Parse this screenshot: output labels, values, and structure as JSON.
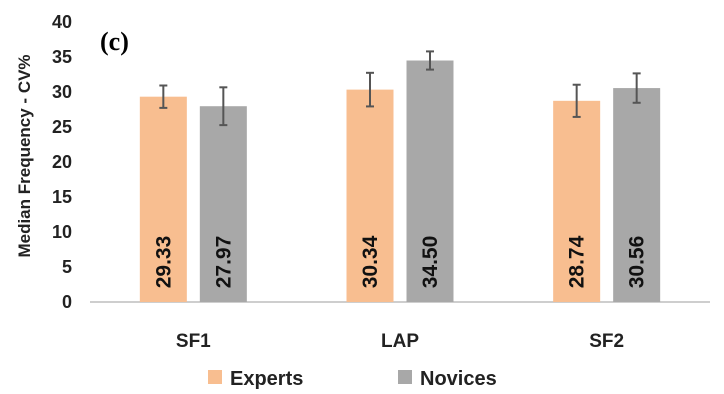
{
  "chart_data": {
    "type": "bar",
    "panel_label": "(c)",
    "ylabel": "Median Frequency - CV%",
    "xlabel": "",
    "ylim": [
      0,
      40
    ],
    "yticks": [
      0,
      5,
      10,
      15,
      20,
      25,
      30,
      35,
      40
    ],
    "categories": [
      "SF1",
      "LAP",
      "SF2"
    ],
    "series": [
      {
        "name": "Experts",
        "color": "#f8be90",
        "values": [
          29.33,
          30.34,
          28.74
        ],
        "labels": [
          "29.33",
          "30.34",
          "28.74"
        ],
        "err": [
          1.6,
          2.4,
          2.3
        ]
      },
      {
        "name": "Novices",
        "color": "#a8a8a8",
        "values": [
          27.97,
          34.5,
          30.56
        ],
        "labels": [
          "27.97",
          "34.50",
          "30.56"
        ],
        "err": [
          2.7,
          1.3,
          2.1
        ]
      }
    ],
    "grid": false,
    "legend_position": "bottom"
  }
}
